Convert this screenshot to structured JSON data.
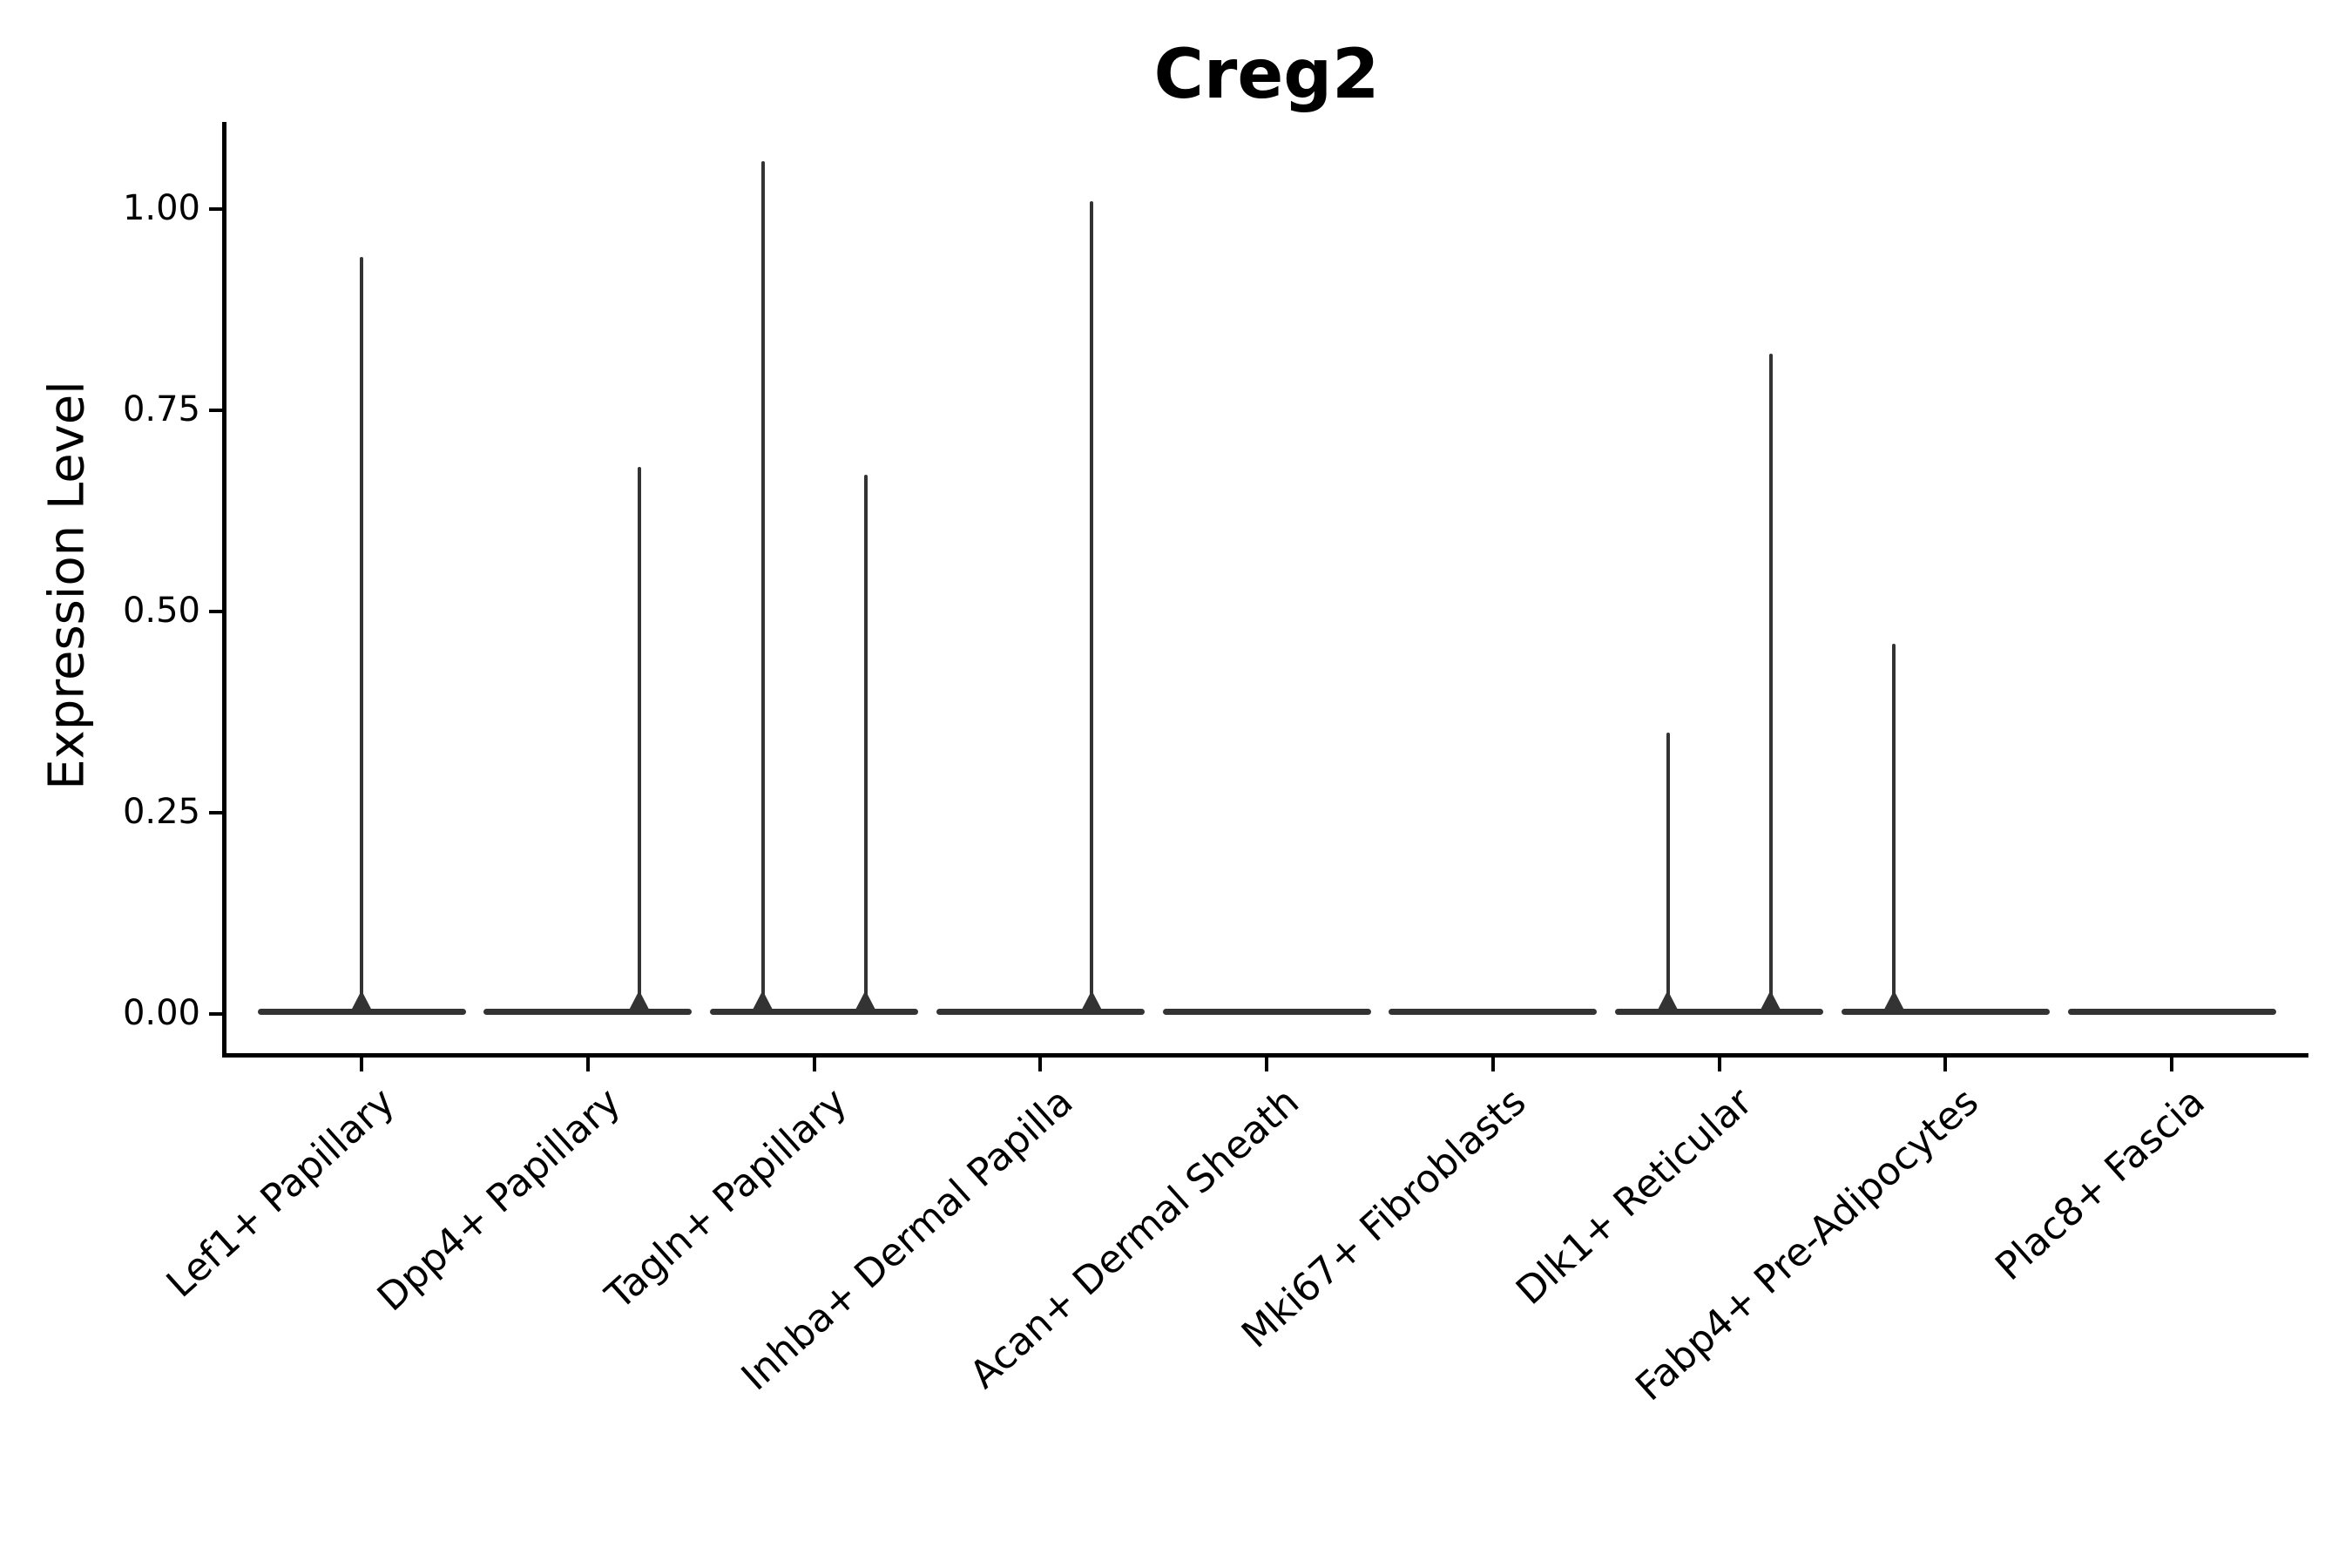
{
  "chart_data": {
    "type": "violin",
    "title": "Creg2",
    "ylabel": "Expression Level",
    "xlabel": "",
    "ylim": [
      -0.05,
      1.11
    ],
    "yticks": [
      0.0,
      0.25,
      0.5,
      0.75,
      1.0
    ],
    "ytick_labels": [
      "0.00",
      "0.25",
      "0.50",
      "0.75",
      "1.00"
    ],
    "grid": "off",
    "legend": "none",
    "categories": [
      "Lef1+ Papillary",
      "Dpp4+ Papillary",
      "Tagln+ Papillary",
      "Inhba+ Dermal Papilla",
      "Acan+ Dermal Sheath",
      "Mki67+ Fibroblasts",
      "Dlk1+ Reticular",
      "Fabp4+ Pre-Adipocytes",
      "Plac8+ Fascia"
    ],
    "violins": [
      {
        "category": "Lef1+ Papillary",
        "baseline_value": 0,
        "spikes": [
          {
            "position": "center",
            "max": 0.94
          }
        ]
      },
      {
        "category": "Dpp4+ Papillary",
        "baseline_value": 0,
        "spikes": [
          {
            "position": "right",
            "max": 0.68
          }
        ]
      },
      {
        "category": "Tagln+ Papillary",
        "baseline_value": 0,
        "spikes": [
          {
            "position": "left",
            "max": 1.06
          },
          {
            "position": "right",
            "max": 0.67
          }
        ]
      },
      {
        "category": "Inhba+ Dermal Papilla",
        "baseline_value": 0,
        "spikes": [
          {
            "position": "right",
            "max": 1.01
          }
        ]
      },
      {
        "category": "Acan+ Dermal Sheath",
        "baseline_value": 0,
        "spikes": []
      },
      {
        "category": "Mki67+ Fibroblasts",
        "baseline_value": 0,
        "spikes": []
      },
      {
        "category": "Dlk1+ Reticular",
        "baseline_value": 0,
        "spikes": [
          {
            "position": "left",
            "max": 0.35
          },
          {
            "position": "right",
            "max": 0.82
          }
        ]
      },
      {
        "category": "Fabp4+ Pre-Adipocytes",
        "baseline_value": 0,
        "spikes": [
          {
            "position": "left",
            "max": 0.46
          }
        ]
      },
      {
        "category": "Plac8+ Fascia",
        "baseline_value": 0,
        "spikes": []
      }
    ],
    "colors": {
      "violin_stroke": "#333333",
      "axis": "#000000",
      "background": "#ffffff"
    }
  }
}
